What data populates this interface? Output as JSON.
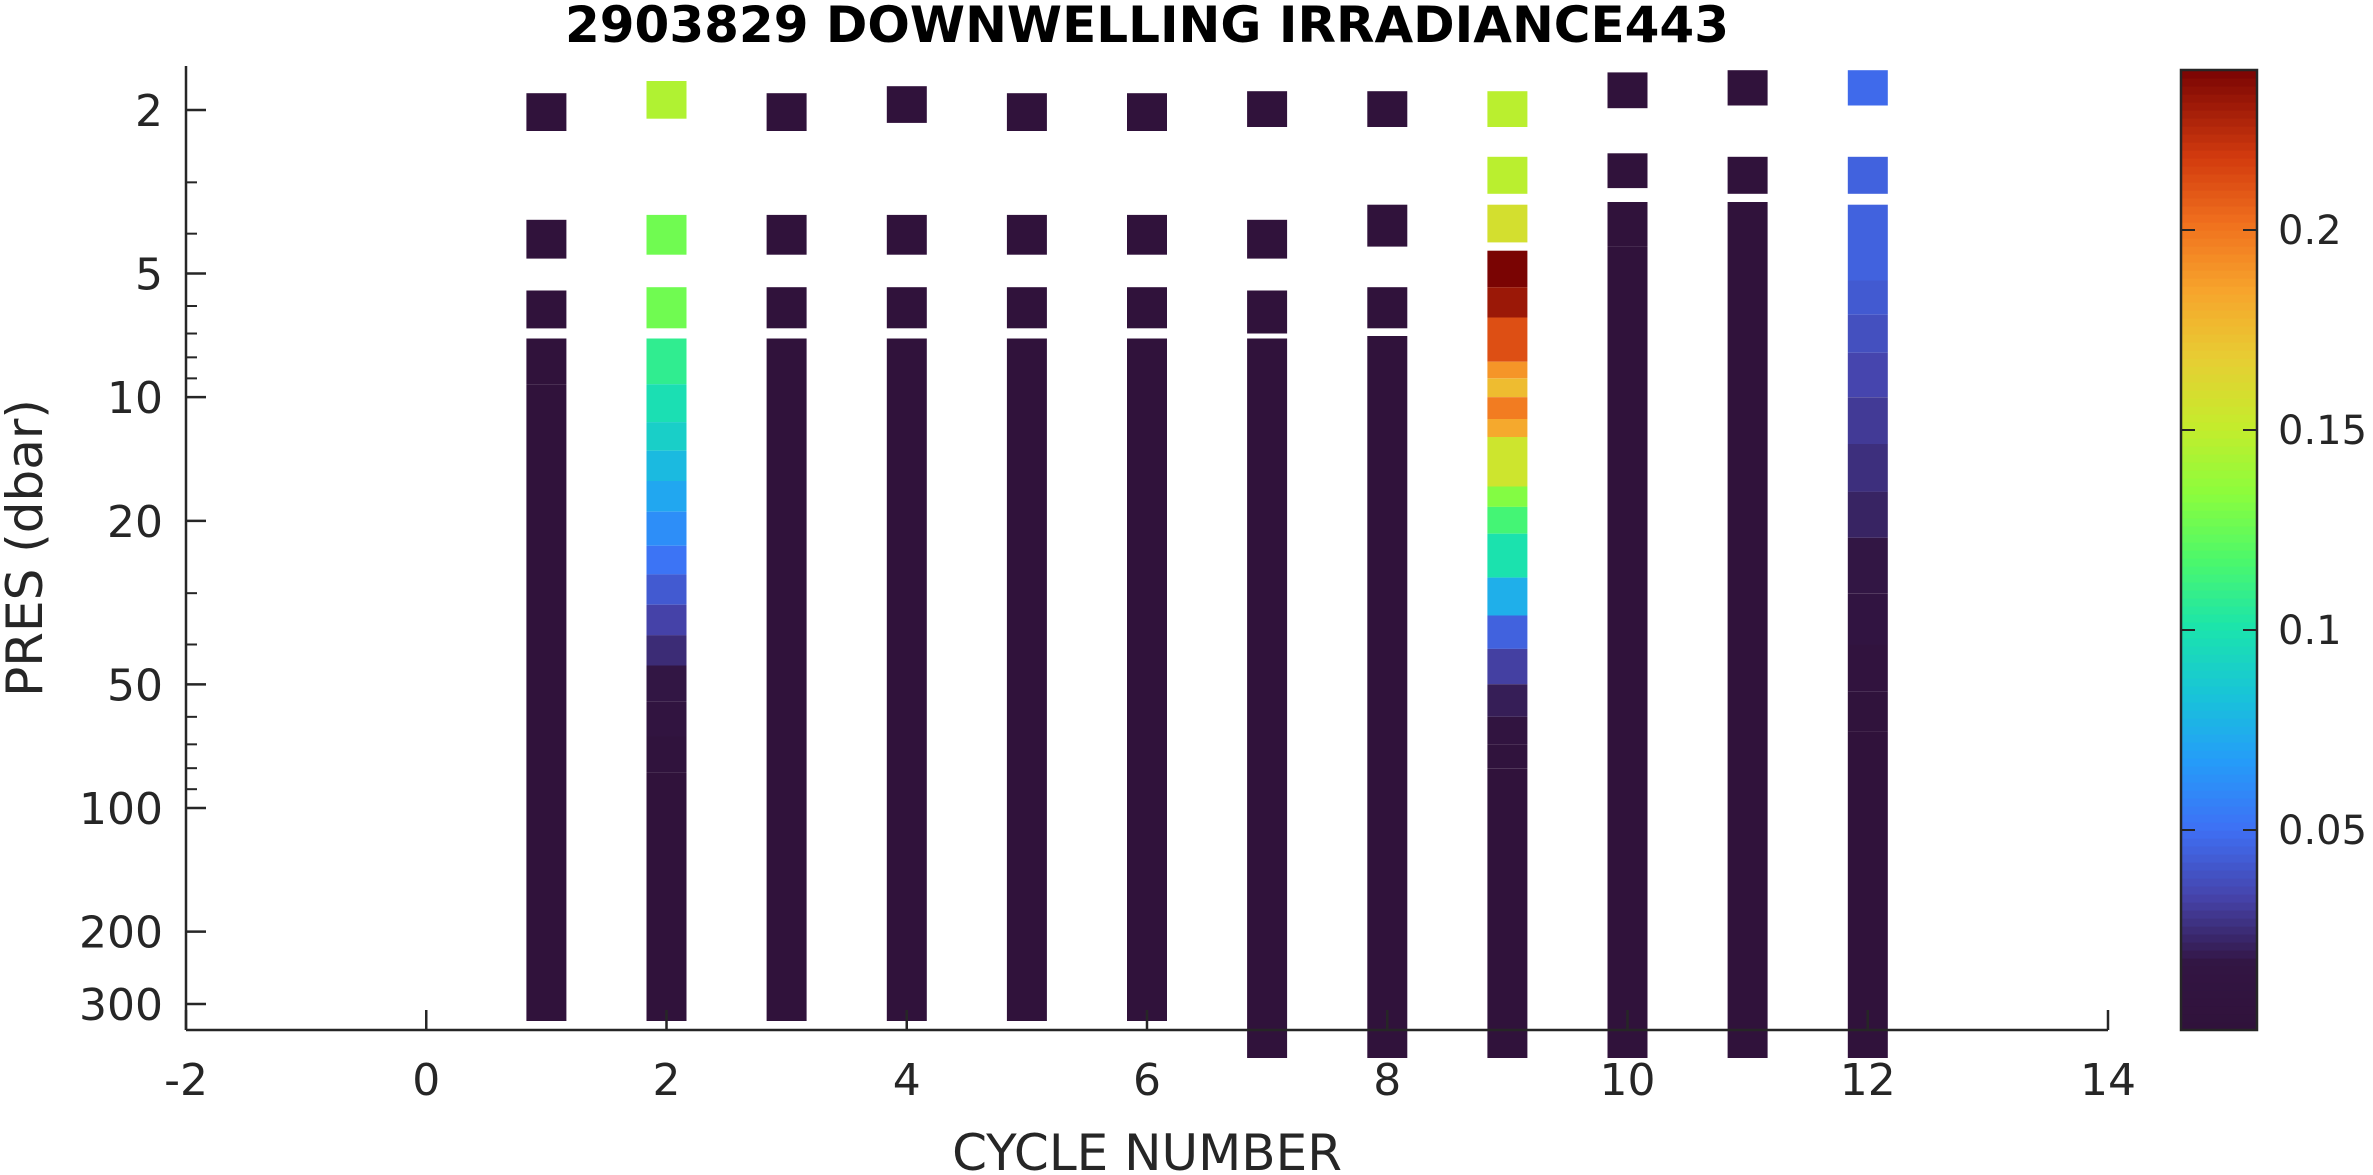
{
  "chart_data": {
    "type": "heatmap",
    "title": "2903829  DOWNWELLING IRRADIANCE443",
    "xlabel": "CYCLE NUMBER",
    "ylabel": "PRES (dbar)",
    "xlim": [
      -2,
      14
    ],
    "ylim": [
      1.6,
      350
    ],
    "y_scale": "log",
    "x_ticks": [
      -2,
      0,
      2,
      4,
      6,
      8,
      10,
      12,
      14
    ],
    "x_tick_labels": [
      "-2",
      "0",
      "2",
      "4",
      "6",
      "8",
      "10",
      "12",
      "14"
    ],
    "y_ticks": [
      2,
      5,
      10,
      20,
      50,
      100,
      200,
      300
    ],
    "y_tick_labels": [
      "2",
      "5",
      "10",
      "20",
      "50",
      "100",
      "200",
      "300"
    ],
    "colorbar": {
      "colormap": "turbo",
      "range": [
        0,
        0.24
      ],
      "ticks": [
        0.05,
        0.1,
        0.15,
        0.2
      ],
      "tick_labels": [
        "0.05",
        "0.1",
        "0.15",
        "0.2"
      ]
    },
    "grid": false,
    "profiles": [
      {
        "cycle": 1,
        "segments": [
          {
            "p_top": 1.82,
            "p_bot": 2.25,
            "value": 0.0
          },
          {
            "p_top": 3.7,
            "p_bot": 4.6,
            "value": 0.0
          },
          {
            "p_top": 5.5,
            "p_bot": 6.8,
            "value": 0.0
          },
          {
            "p_top": 7.2,
            "p_bot": 9.3,
            "value": 0.0
          },
          {
            "p_top": 9.3,
            "p_bot": 330,
            "value": 0.0
          }
        ]
      },
      {
        "cycle": 2,
        "segments": [
          {
            "p_top": 1.7,
            "p_bot": 2.1,
            "value": 0.145
          },
          {
            "p_top": 3.6,
            "p_bot": 4.5,
            "value": 0.127
          },
          {
            "p_top": 5.4,
            "p_bot": 6.8,
            "value": 0.127
          },
          {
            "p_top": 7.2,
            "p_bot": 9.3,
            "value": 0.108
          },
          {
            "p_top": 9.3,
            "p_bot": 11.5,
            "value": 0.098
          },
          {
            "p_top": 11.5,
            "p_bot": 13.5,
            "value": 0.09
          },
          {
            "p_top": 13.5,
            "p_bot": 16,
            "value": 0.08
          },
          {
            "p_top": 16,
            "p_bot": 19,
            "value": 0.072
          },
          {
            "p_top": 19,
            "p_bot": 23,
            "value": 0.062
          },
          {
            "p_top": 23,
            "p_bot": 27,
            "value": 0.052
          },
          {
            "p_top": 27,
            "p_bot": 32,
            "value": 0.042
          },
          {
            "p_top": 32,
            "p_bot": 38,
            "value": 0.033
          },
          {
            "p_top": 38,
            "p_bot": 45,
            "value": 0.025
          },
          {
            "p_top": 45,
            "p_bot": 55,
            "value": 0.017
          },
          {
            "p_top": 55,
            "p_bot": 67,
            "value": 0.01
          },
          {
            "p_top": 67,
            "p_bot": 82,
            "value": 0.004
          },
          {
            "p_top": 82,
            "p_bot": 330,
            "value": 0.0
          }
        ]
      },
      {
        "cycle": 3,
        "segments": [
          {
            "p_top": 1.82,
            "p_bot": 2.25,
            "value": 0.0
          },
          {
            "p_top": 3.6,
            "p_bot": 4.5,
            "value": 0.0
          },
          {
            "p_top": 5.4,
            "p_bot": 6.8,
            "value": 0.0
          },
          {
            "p_top": 7.2,
            "p_bot": 330,
            "value": 0.0
          }
        ]
      },
      {
        "cycle": 4,
        "segments": [
          {
            "p_top": 1.75,
            "p_bot": 2.15,
            "value": 0.0
          },
          {
            "p_top": 3.6,
            "p_bot": 4.5,
            "value": 0.0
          },
          {
            "p_top": 5.4,
            "p_bot": 6.8,
            "value": 0.0
          },
          {
            "p_top": 7.2,
            "p_bot": 330,
            "value": 0.0
          }
        ]
      },
      {
        "cycle": 5,
        "segments": [
          {
            "p_top": 1.82,
            "p_bot": 2.25,
            "value": 0.0
          },
          {
            "p_top": 3.6,
            "p_bot": 4.5,
            "value": 0.0
          },
          {
            "p_top": 5.4,
            "p_bot": 6.8,
            "value": 0.0
          },
          {
            "p_top": 7.2,
            "p_bot": 330,
            "value": 0.0
          }
        ]
      },
      {
        "cycle": 6,
        "segments": [
          {
            "p_top": 1.82,
            "p_bot": 2.25,
            "value": 0.0
          },
          {
            "p_top": 3.6,
            "p_bot": 4.5,
            "value": 0.0
          },
          {
            "p_top": 5.4,
            "p_bot": 6.8,
            "value": 0.0
          },
          {
            "p_top": 7.2,
            "p_bot": 330,
            "value": 0.0
          }
        ]
      },
      {
        "cycle": 7,
        "segments": [
          {
            "p_top": 1.8,
            "p_bot": 2.2,
            "value": 0.0
          },
          {
            "p_top": 3.7,
            "p_bot": 4.6,
            "value": 0.0
          },
          {
            "p_top": 5.5,
            "p_bot": 7.0,
            "value": 0.0
          },
          {
            "p_top": 7.2,
            "p_bot": 420,
            "value": 0.0
          }
        ]
      },
      {
        "cycle": 8,
        "segments": [
          {
            "p_top": 1.8,
            "p_bot": 2.2,
            "value": 0.0
          },
          {
            "p_top": 3.4,
            "p_bot": 4.3,
            "value": 0.0
          },
          {
            "p_top": 5.4,
            "p_bot": 6.8,
            "value": 0.0
          },
          {
            "p_top": 7.1,
            "p_bot": 420,
            "value": 0.0
          }
        ]
      },
      {
        "cycle": 9,
        "segments": [
          {
            "p_top": 1.8,
            "p_bot": 2.2,
            "value": 0.148
          },
          {
            "p_top": 2.6,
            "p_bot": 3.2,
            "value": 0.148
          },
          {
            "p_top": 3.4,
            "p_bot": 4.2,
            "value": 0.158
          },
          {
            "p_top": 4.4,
            "p_bot": 5.4,
            "value": 0.24
          },
          {
            "p_top": 5.4,
            "p_bot": 6.4,
            "value": 0.232
          },
          {
            "p_top": 6.4,
            "p_bot": 8.2,
            "value": 0.212
          },
          {
            "p_top": 8.2,
            "p_bot": 9.0,
            "value": 0.19
          },
          {
            "p_top": 9.0,
            "p_bot": 10.0,
            "value": 0.175
          },
          {
            "p_top": 10.0,
            "p_bot": 11.3,
            "value": 0.198
          },
          {
            "p_top": 11.3,
            "p_bot": 12.5,
            "value": 0.183
          },
          {
            "p_top": 12.5,
            "p_bot": 16.5,
            "value": 0.155
          },
          {
            "p_top": 16.5,
            "p_bot": 18.5,
            "value": 0.132
          },
          {
            "p_top": 18.5,
            "p_bot": 21.5,
            "value": 0.115
          },
          {
            "p_top": 21.5,
            "p_bot": 27.5,
            "value": 0.1
          },
          {
            "p_top": 27.5,
            "p_bot": 34,
            "value": 0.075
          },
          {
            "p_top": 34,
            "p_bot": 41,
            "value": 0.045
          },
          {
            "p_top": 41,
            "p_bot": 50,
            "value": 0.032
          },
          {
            "p_top": 50,
            "p_bot": 60,
            "value": 0.02
          },
          {
            "p_top": 60,
            "p_bot": 70,
            "value": 0.01
          },
          {
            "p_top": 70,
            "p_bot": 80,
            "value": 0.004
          },
          {
            "p_top": 80,
            "p_bot": 420,
            "value": 0.0
          }
        ]
      },
      {
        "cycle": 10,
        "segments": [
          {
            "p_top": 1.62,
            "p_bot": 1.98,
            "value": 0.0
          },
          {
            "p_top": 2.55,
            "p_bot": 3.1,
            "value": 0.0
          },
          {
            "p_top": 3.35,
            "p_bot": 4.3,
            "value": 0.0
          },
          {
            "p_top": 4.3,
            "p_bot": 420,
            "value": 0.0
          }
        ]
      },
      {
        "cycle": 11,
        "segments": [
          {
            "p_top": 1.6,
            "p_bot": 1.95,
            "value": 0.0
          },
          {
            "p_top": 2.6,
            "p_bot": 3.2,
            "value": 0.0
          },
          {
            "p_top": 3.35,
            "p_bot": 420,
            "value": 0.0
          }
        ]
      },
      {
        "cycle": 12,
        "segments": [
          {
            "p_top": 1.6,
            "p_bot": 1.95,
            "value": 0.048
          },
          {
            "p_top": 2.6,
            "p_bot": 3.2,
            "value": 0.045
          },
          {
            "p_top": 3.4,
            "p_bot": 5.2,
            "value": 0.045
          },
          {
            "p_top": 5.2,
            "p_bot": 6.3,
            "value": 0.042
          },
          {
            "p_top": 6.3,
            "p_bot": 7.8,
            "value": 0.038
          },
          {
            "p_top": 7.8,
            "p_bot": 10,
            "value": 0.034
          },
          {
            "p_top": 10,
            "p_bot": 13,
            "value": 0.03
          },
          {
            "p_top": 13,
            "p_bot": 17,
            "value": 0.026
          },
          {
            "p_top": 17,
            "p_bot": 22,
            "value": 0.022
          },
          {
            "p_top": 22,
            "p_bot": 30,
            "value": 0.017
          },
          {
            "p_top": 30,
            "p_bot": 40,
            "value": 0.012
          },
          {
            "p_top": 40,
            "p_bot": 52,
            "value": 0.007
          },
          {
            "p_top": 52,
            "p_bot": 65,
            "value": 0.003
          },
          {
            "p_top": 65,
            "p_bot": 420,
            "value": 0.0
          }
        ]
      }
    ]
  }
}
